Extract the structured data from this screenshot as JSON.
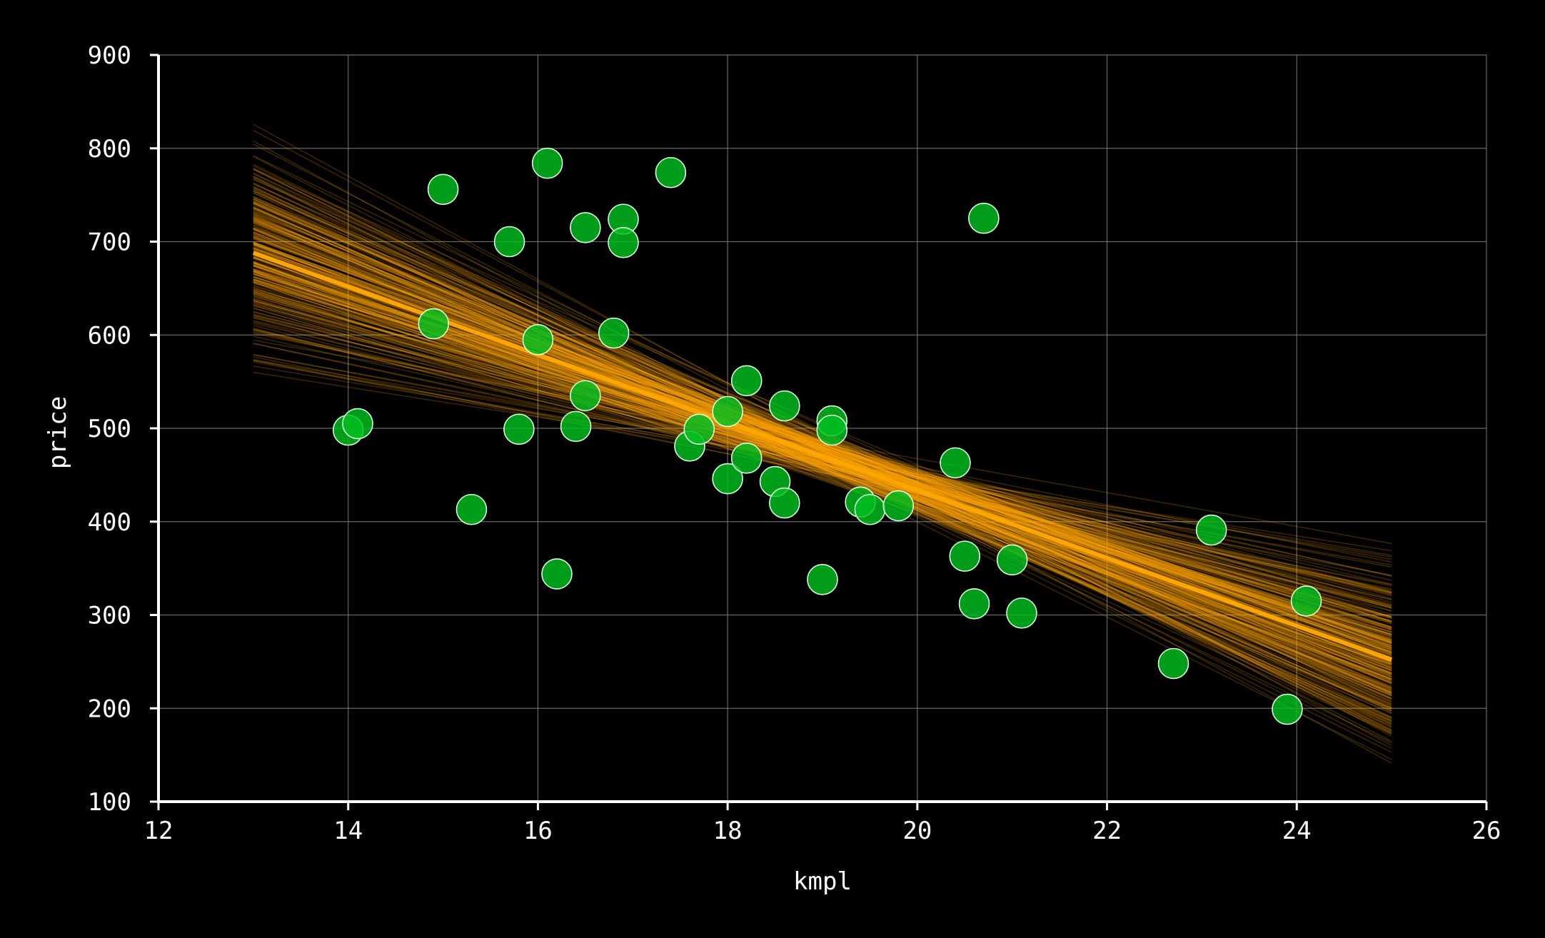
{
  "chart_data": {
    "type": "scatter",
    "title": "",
    "xlabel": "kmpl",
    "ylabel": "price",
    "xlim": [
      12,
      26
    ],
    "ylim": [
      100,
      900
    ],
    "xticks": [
      12,
      14,
      16,
      18,
      20,
      22,
      24,
      26
    ],
    "yticks": [
      100,
      200,
      300,
      400,
      500,
      600,
      700,
      800,
      900
    ],
    "grid": true,
    "colors": {
      "background": "#000000",
      "points": "#00c020",
      "point_edge": "#d8ffd8",
      "fit_line": "#ffa500",
      "uncertainty_lines": "#ffa500",
      "grid": "#808080",
      "axes": "#ffffff"
    },
    "points": [
      {
        "x": 14.0,
        "y": 498
      },
      {
        "x": 14.1,
        "y": 505
      },
      {
        "x": 14.9,
        "y": 612
      },
      {
        "x": 15.0,
        "y": 756
      },
      {
        "x": 15.3,
        "y": 413
      },
      {
        "x": 15.7,
        "y": 700
      },
      {
        "x": 15.8,
        "y": 499
      },
      {
        "x": 16.0,
        "y": 595
      },
      {
        "x": 16.1,
        "y": 784
      },
      {
        "x": 16.2,
        "y": 344
      },
      {
        "x": 16.4,
        "y": 502
      },
      {
        "x": 16.5,
        "y": 715
      },
      {
        "x": 16.5,
        "y": 535
      },
      {
        "x": 16.8,
        "y": 602
      },
      {
        "x": 16.9,
        "y": 724
      },
      {
        "x": 16.9,
        "y": 699
      },
      {
        "x": 17.4,
        "y": 774
      },
      {
        "x": 17.6,
        "y": 481
      },
      {
        "x": 17.7,
        "y": 499
      },
      {
        "x": 18.0,
        "y": 518
      },
      {
        "x": 18.0,
        "y": 446
      },
      {
        "x": 18.2,
        "y": 551
      },
      {
        "x": 18.2,
        "y": 468
      },
      {
        "x": 18.5,
        "y": 443
      },
      {
        "x": 18.6,
        "y": 524
      },
      {
        "x": 18.6,
        "y": 420
      },
      {
        "x": 19.0,
        "y": 338
      },
      {
        "x": 19.1,
        "y": 508
      },
      {
        "x": 19.1,
        "y": 498
      },
      {
        "x": 19.4,
        "y": 421
      },
      {
        "x": 19.5,
        "y": 413
      },
      {
        "x": 19.8,
        "y": 417
      },
      {
        "x": 20.4,
        "y": 463
      },
      {
        "x": 20.5,
        "y": 363
      },
      {
        "x": 20.6,
        "y": 312
      },
      {
        "x": 20.7,
        "y": 725
      },
      {
        "x": 21.0,
        "y": 359
      },
      {
        "x": 21.1,
        "y": 302
      },
      {
        "x": 22.7,
        "y": 248
      },
      {
        "x": 23.1,
        "y": 391
      },
      {
        "x": 23.9,
        "y": 199
      },
      {
        "x": 24.1,
        "y": 315
      }
    ],
    "fit_line": {
      "x": [
        13,
        25
      ],
      "y": [
        688,
        252
      ]
    },
    "uncertainty_band": {
      "x": [
        13,
        25
      ],
      "start_range": [
        560,
        830
      ],
      "end_range": [
        135,
        450
      ],
      "count": 300
    }
  }
}
